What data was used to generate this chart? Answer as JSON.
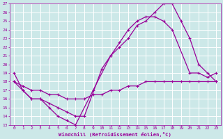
{
  "xlabel": "Windchill (Refroidissement éolien,°C)",
  "bg_color": "#cce8e8",
  "line_color": "#990099",
  "grid_color": "#ffffff",
  "xlim": [
    -0.5,
    23.5
  ],
  "ylim": [
    13,
    27
  ],
  "xticks": [
    0,
    1,
    2,
    3,
    4,
    5,
    6,
    7,
    8,
    9,
    10,
    11,
    12,
    13,
    14,
    15,
    16,
    17,
    18,
    19,
    20,
    21,
    22,
    23
  ],
  "yticks": [
    13,
    14,
    15,
    16,
    17,
    18,
    19,
    20,
    21,
    22,
    23,
    24,
    25,
    26,
    27
  ],
  "line1_x": [
    0,
    1,
    2,
    3,
    4,
    5,
    6,
    7,
    9,
    11,
    12,
    13,
    14,
    15,
    16,
    17,
    18,
    19,
    20,
    21,
    22,
    23
  ],
  "line1_y": [
    19,
    17,
    16,
    16,
    15,
    14,
    13.5,
    13,
    17,
    21,
    22,
    23,
    24.5,
    25,
    26,
    27,
    27,
    25,
    23,
    20,
    19,
    18
  ],
  "line2_x": [
    0,
    1,
    2,
    3,
    4,
    5,
    6,
    7,
    8,
    10,
    11,
    12,
    13,
    14,
    15,
    16,
    17,
    18,
    20,
    21,
    22,
    23
  ],
  "line2_y": [
    18,
    17,
    16,
    16,
    15.5,
    15,
    14.5,
    14,
    14,
    19.5,
    21,
    22.5,
    24,
    25,
    25.5,
    25.5,
    25,
    24,
    19,
    19,
    18.5,
    19
  ],
  "line3_x": [
    0,
    1,
    2,
    3,
    4,
    5,
    6,
    7,
    8,
    9,
    10,
    11,
    12,
    13,
    14,
    15,
    16,
    17,
    18,
    19,
    20,
    21,
    22,
    23
  ],
  "line3_y": [
    18,
    17.5,
    17,
    17,
    16.5,
    16.5,
    16,
    16,
    16,
    16.5,
    16.5,
    17,
    17,
    17.5,
    17.5,
    18,
    18,
    18,
    18,
    18,
    18,
    18,
    18,
    18
  ]
}
